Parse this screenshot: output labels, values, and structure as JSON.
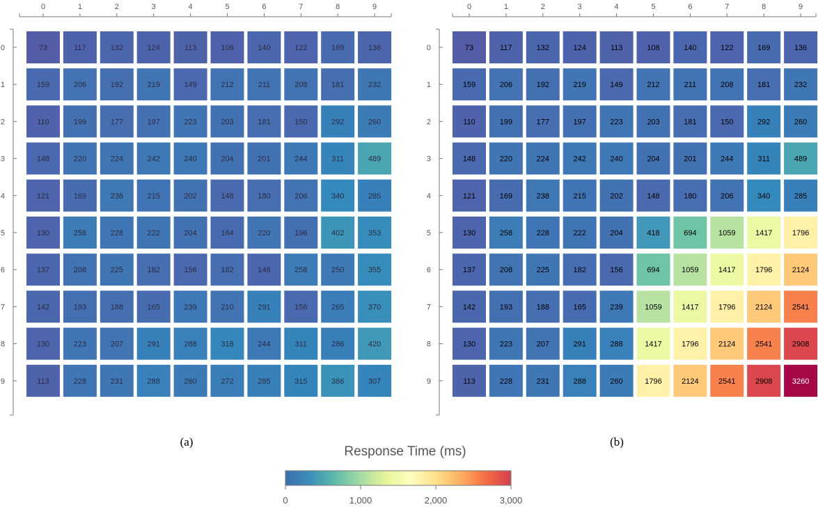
{
  "chart_data": [
    {
      "type": "heatmap",
      "caption": "(a)",
      "x_ticks": [
        "0",
        "1",
        "2",
        "3",
        "4",
        "5",
        "6",
        "7",
        "8",
        "9"
      ],
      "y_ticks": [
        "0",
        "1",
        "2",
        "3",
        "4",
        "5",
        "6",
        "7",
        "8",
        "9"
      ],
      "values": [
        [
          73,
          117,
          132,
          124,
          113,
          108,
          140,
          122,
          169,
          136
        ],
        [
          159,
          206,
          192,
          219,
          149,
          212,
          211,
          208,
          181,
          232
        ],
        [
          110,
          199,
          177,
          197,
          223,
          203,
          181,
          150,
          292,
          260
        ],
        [
          148,
          220,
          224,
          242,
          240,
          204,
          201,
          244,
          311,
          489
        ],
        [
          121,
          169,
          238,
          215,
          202,
          148,
          180,
          206,
          340,
          285
        ],
        [
          130,
          258,
          228,
          222,
          204,
          164,
          220,
          196,
          402,
          353
        ],
        [
          137,
          208,
          225,
          182,
          156,
          182,
          146,
          258,
          250,
          355
        ],
        [
          142,
          193,
          188,
          165,
          239,
          210,
          291,
          156,
          265,
          370
        ],
        [
          130,
          223,
          207,
          291,
          288,
          318,
          244,
          311,
          286,
          420
        ],
        [
          113,
          228,
          231,
          288,
          260,
          272,
          285,
          315,
          386,
          307
        ]
      ]
    },
    {
      "type": "heatmap",
      "caption": "(b)",
      "x_ticks": [
        "0",
        "1",
        "2",
        "3",
        "4",
        "5",
        "6",
        "7",
        "8",
        "9"
      ],
      "y_ticks": [
        "0",
        "1",
        "2",
        "3",
        "4",
        "5",
        "6",
        "7",
        "8",
        "9"
      ],
      "values": [
        [
          73,
          117,
          132,
          124,
          113,
          108,
          140,
          122,
          169,
          136
        ],
        [
          159,
          206,
          192,
          219,
          149,
          212,
          211,
          208,
          181,
          232
        ],
        [
          110,
          199,
          177,
          197,
          223,
          203,
          181,
          150,
          292,
          260
        ],
        [
          148,
          220,
          224,
          242,
          240,
          204,
          201,
          244,
          311,
          489
        ],
        [
          121,
          169,
          238,
          215,
          202,
          148,
          180,
          206,
          340,
          285
        ],
        [
          130,
          258,
          228,
          222,
          204,
          418,
          694,
          1059,
          1417,
          1796
        ],
        [
          137,
          208,
          225,
          182,
          156,
          694,
          1059,
          1417,
          1796,
          2124
        ],
        [
          142,
          193,
          188,
          165,
          239,
          1059,
          1417,
          1796,
          2124,
          2541
        ],
        [
          130,
          223,
          207,
          291,
          288,
          1417,
          1796,
          2124,
          2541,
          2908
        ],
        [
          113,
          228,
          231,
          288,
          260,
          1796,
          2124,
          2541,
          2908,
          3260
        ]
      ]
    }
  ],
  "colorbar": {
    "title": "Response Time (ms)",
    "ticks": [
      {
        "value": 0,
        "label": "0"
      },
      {
        "value": 1000,
        "label": "1,000"
      },
      {
        "value": 2000,
        "label": "2,000"
      },
      {
        "value": 3000,
        "label": "3,000"
      }
    ],
    "domain": [
      0,
      3000
    ],
    "colors": [
      "#3a6fb0",
      "#3e8fb8",
      "#5fbca8",
      "#a6dba4",
      "#e6f59a",
      "#fefdbe",
      "#fee08b",
      "#fdae61",
      "#f46d43",
      "#d53e4f"
    ]
  },
  "cell_colormap": {
    "stops": [
      "#5e4fa2",
      "#3288bd",
      "#66c2a5",
      "#abdda4",
      "#e6f598",
      "#ffffbf",
      "#fee08b",
      "#fdae61",
      "#f46d43",
      "#d53e4f",
      "#9e0142"
    ],
    "domain": [
      0,
      3300
    ]
  }
}
